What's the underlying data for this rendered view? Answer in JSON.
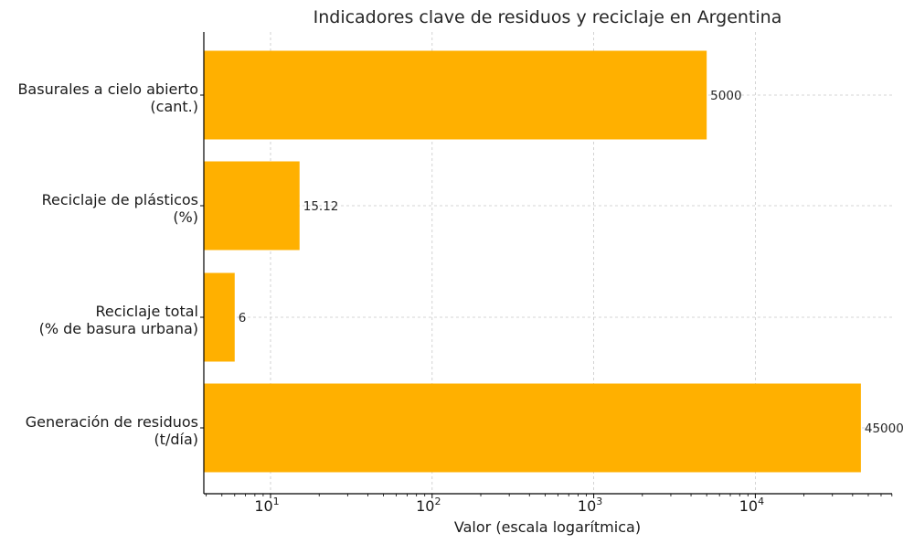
{
  "chart_data": {
    "type": "bar",
    "orientation": "horizontal",
    "title": "Indicadores clave de residuos y reciclaje en Argentina",
    "xlabel": "Valor (escala logarítmica)",
    "ylabel": "",
    "xscale": "log",
    "xlim": [
      3.9,
      70000
    ],
    "grid": true,
    "bar_color": "#FFB000",
    "categories": [
      [
        "Basurales a cielo abierto",
        "(cant.)"
      ],
      [
        "Reciclaje de plásticos",
        "(%)"
      ],
      [
        "Reciclaje total",
        "(% de basura urbana)"
      ],
      [
        "Generación de residuos",
        "(t/día)"
      ]
    ],
    "values": [
      5000,
      15.12,
      6,
      45000
    ],
    "value_labels": [
      "5000",
      "15.12",
      "6",
      "45000"
    ],
    "xticks": [
      {
        "value": 10,
        "base": "10",
        "exp": "1"
      },
      {
        "value": 100,
        "base": "10",
        "exp": "2"
      },
      {
        "value": 1000,
        "base": "10",
        "exp": "3"
      },
      {
        "value": 10000,
        "base": "10",
        "exp": "4"
      }
    ]
  }
}
